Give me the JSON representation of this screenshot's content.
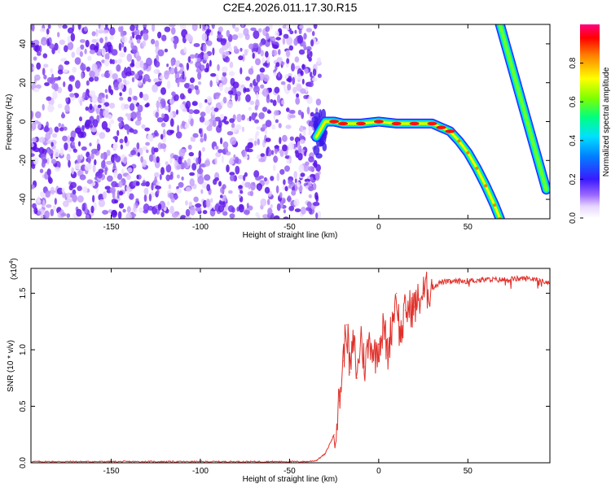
{
  "title": "C2E4.2026.011.17.30.R15",
  "colors": {
    "noise": "#7a3cf0",
    "noise_light": "#c9aaf7",
    "snr_line": "#e0302a",
    "axis": "#000000"
  },
  "chart_data": [
    {
      "type": "heatmap",
      "title": "C2E4.2026.011.17.30.R15",
      "xlabel": "Height of straight line (km)",
      "ylabel": "Frequency (Hz)",
      "xlim": [
        -195,
        96
      ],
      "ylim": [
        -50,
        50
      ],
      "x_ticks": [
        -150,
        -100,
        -50,
        0,
        50
      ],
      "x_tick_labels": [
        "-150",
        "-100",
        "-50",
        "0",
        "50"
      ],
      "y_ticks": [
        -40,
        -20,
        0,
        20,
        40
      ],
      "y_tick_labels": [
        "-40",
        "-20",
        "0",
        "20",
        "40"
      ],
      "colorbar": {
        "label": "Normalized spectral amplitude",
        "range": [
          0,
          1
        ],
        "ticks": [
          0.0,
          0.2,
          0.4,
          0.6,
          0.8
        ],
        "tick_labels": [
          "0.0",
          "0.2",
          "0.4",
          "0.6",
          "0.8"
        ]
      },
      "noise_region": {
        "x_range": [
          -195,
          -33
        ],
        "y_range": [
          -50,
          50
        ]
      },
      "main_trace": [
        {
          "x": -35,
          "y": -8
        },
        {
          "x": -30,
          "y": 0
        },
        {
          "x": -25,
          "y": 0
        },
        {
          "x": -20,
          "y": -1
        },
        {
          "x": -10,
          "y": -1
        },
        {
          "x": 0,
          "y": 0
        },
        {
          "x": 10,
          "y": -1
        },
        {
          "x": 20,
          "y": -1
        },
        {
          "x": 30,
          "y": -1
        },
        {
          "x": 35,
          "y": -3
        },
        {
          "x": 40,
          "y": -5
        },
        {
          "x": 45,
          "y": -10
        },
        {
          "x": 50,
          "y": -16
        },
        {
          "x": 55,
          "y": -24
        },
        {
          "x": 60,
          "y": -33
        },
        {
          "x": 65,
          "y": -43
        },
        {
          "x": 68,
          "y": -50
        }
      ],
      "secondary_trace": [
        {
          "x": 68,
          "y": 50
        },
        {
          "x": 94,
          "y": -35
        }
      ]
    },
    {
      "type": "line",
      "xlabel": "Height of straight line (km)",
      "ylabel": "SNR (10 * v/v)",
      "y_multiplier_label": "(x10",
      "y_multiplier_exp": "4",
      "y_multiplier_close": ")",
      "xlim": [
        -195,
        96
      ],
      "ylim": [
        0,
        1.72
      ],
      "x_ticks": [
        -150,
        -100,
        -50,
        0,
        50
      ],
      "x_tick_labels": [
        "-150",
        "-100",
        "-50",
        "0",
        "50"
      ],
      "y_ticks": [
        0,
        0.5,
        1.0,
        1.5
      ],
      "y_tick_labels": [
        "0.0",
        "0.5",
        "1.0",
        "1.5"
      ],
      "series": [
        {
          "name": "SNR",
          "x": [
            -195,
            -150,
            -100,
            -60,
            -40,
            -35,
            -30,
            -25,
            -22,
            -20,
            -18,
            -16,
            -14,
            -12,
            -10,
            -8,
            -5,
            -2,
            0,
            3,
            5,
            8,
            10,
            12,
            15,
            20,
            25,
            30,
            35,
            40,
            50,
            60,
            70,
            80,
            90,
            96
          ],
          "values": [
            0.01,
            0.01,
            0.01,
            0.01,
            0.01,
            0.02,
            0.08,
            0.25,
            0.55,
            0.9,
            1.22,
            0.8,
            1.08,
            0.75,
            1.15,
            0.85,
            1.1,
            0.95,
            1.05,
            1.2,
            0.95,
            1.3,
            1.5,
            1.1,
            1.35,
            1.38,
            1.5,
            1.55,
            1.6,
            1.6,
            1.61,
            1.62,
            1.62,
            1.63,
            1.63,
            1.58
          ]
        }
      ]
    }
  ]
}
